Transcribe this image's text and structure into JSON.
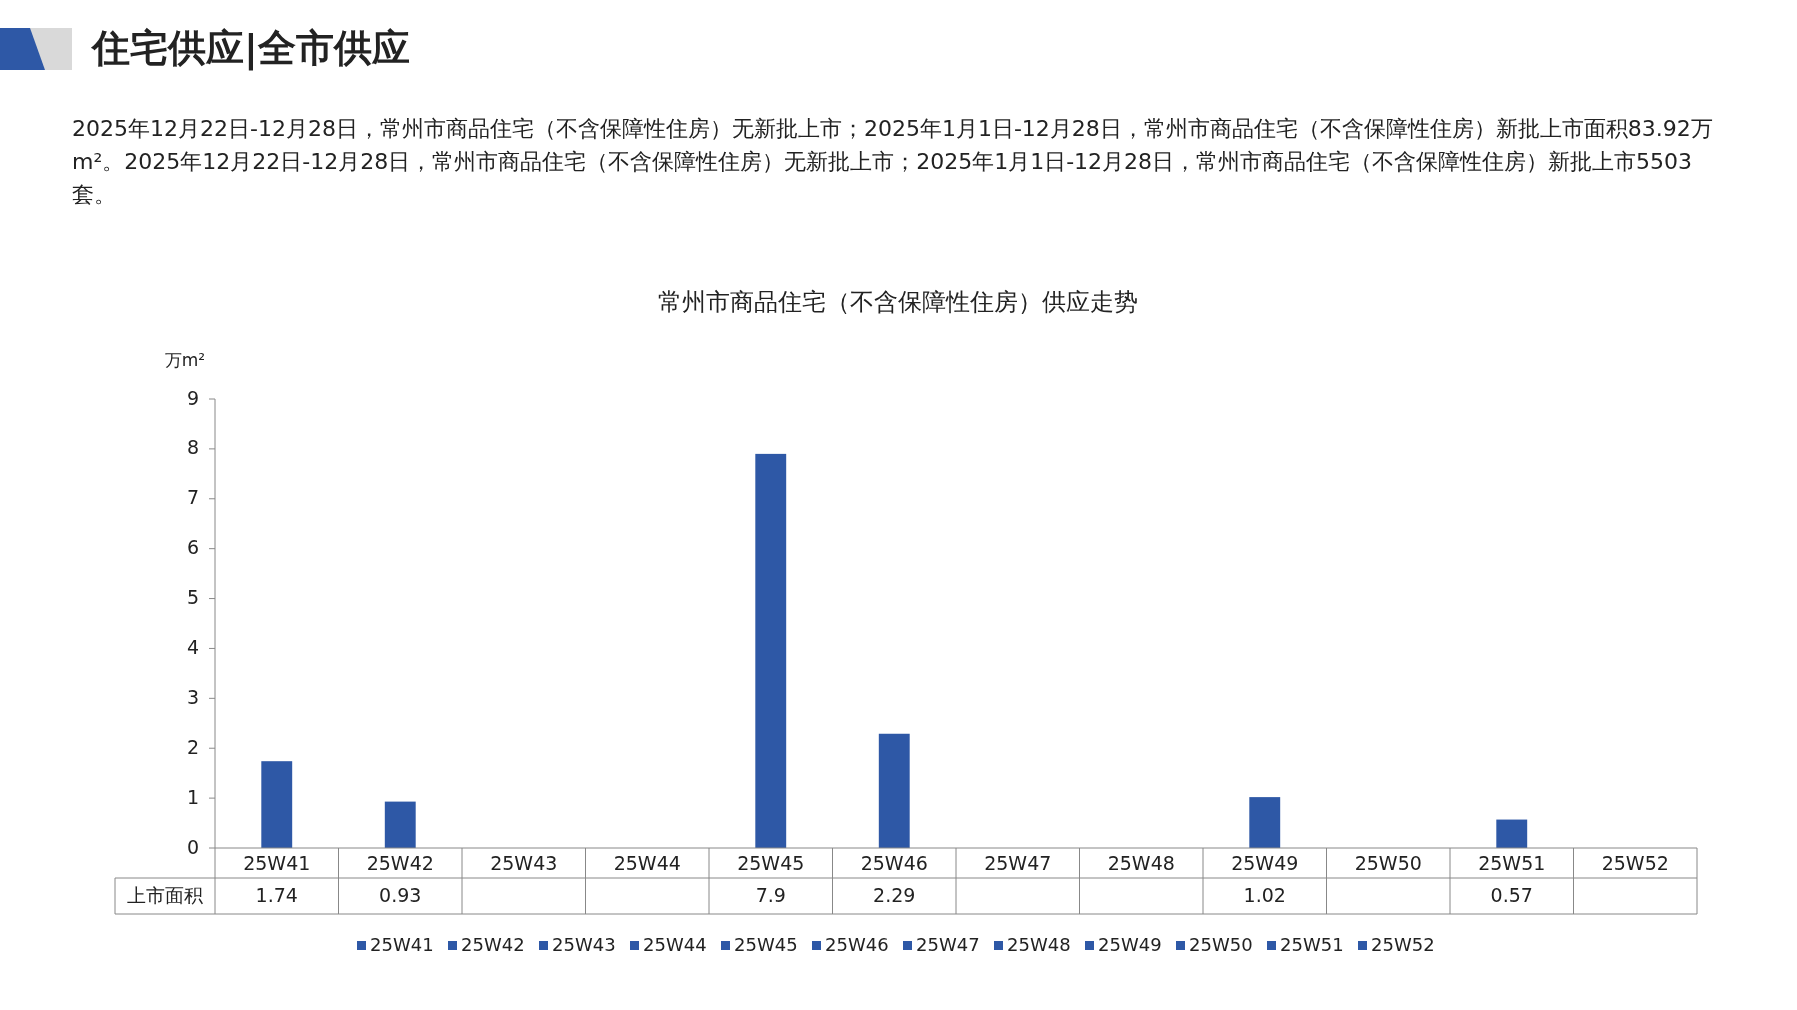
{
  "chart_data": {
    "type": "bar",
    "title": "常州市商品住宅（不含保障性住房）供应走势",
    "ylabel": "万m²",
    "annotations": [
      "住宅供应|全市供应",
      "2025年12月22日-12月28日，常州市商品住宅（不含保障性住房）无新批上市；2025年1月1日-12月28日，常州市商品住宅（不含保障性住房）新批上市面积83.92万m²。2025年12月22日-12月28日，常州市商品住宅（不含保障性住房）无新批上市；2025年1月1日-12月28日，常州市商品住宅（不含保障性住房）新批上市5503套。"
    ],
    "categories": [
      "25W41",
      "25W42",
      "25W43",
      "25W44",
      "25W45",
      "25W46",
      "25W47",
      "25W48",
      "25W49",
      "25W50",
      "25W51",
      "25W52"
    ],
    "series": [
      {
        "name": "上市面积",
        "color": "#2e58a6",
        "values": [
          1.74,
          0.93,
          null,
          null,
          7.9,
          2.29,
          null,
          null,
          1.02,
          null,
          0.57,
          null
        ]
      }
    ],
    "ylim": [
      0,
      9
    ],
    "yticks": [
      0,
      1,
      2,
      3,
      4,
      5,
      6,
      7,
      8,
      9
    ],
    "data_labels": true,
    "legend": "bottom"
  }
}
